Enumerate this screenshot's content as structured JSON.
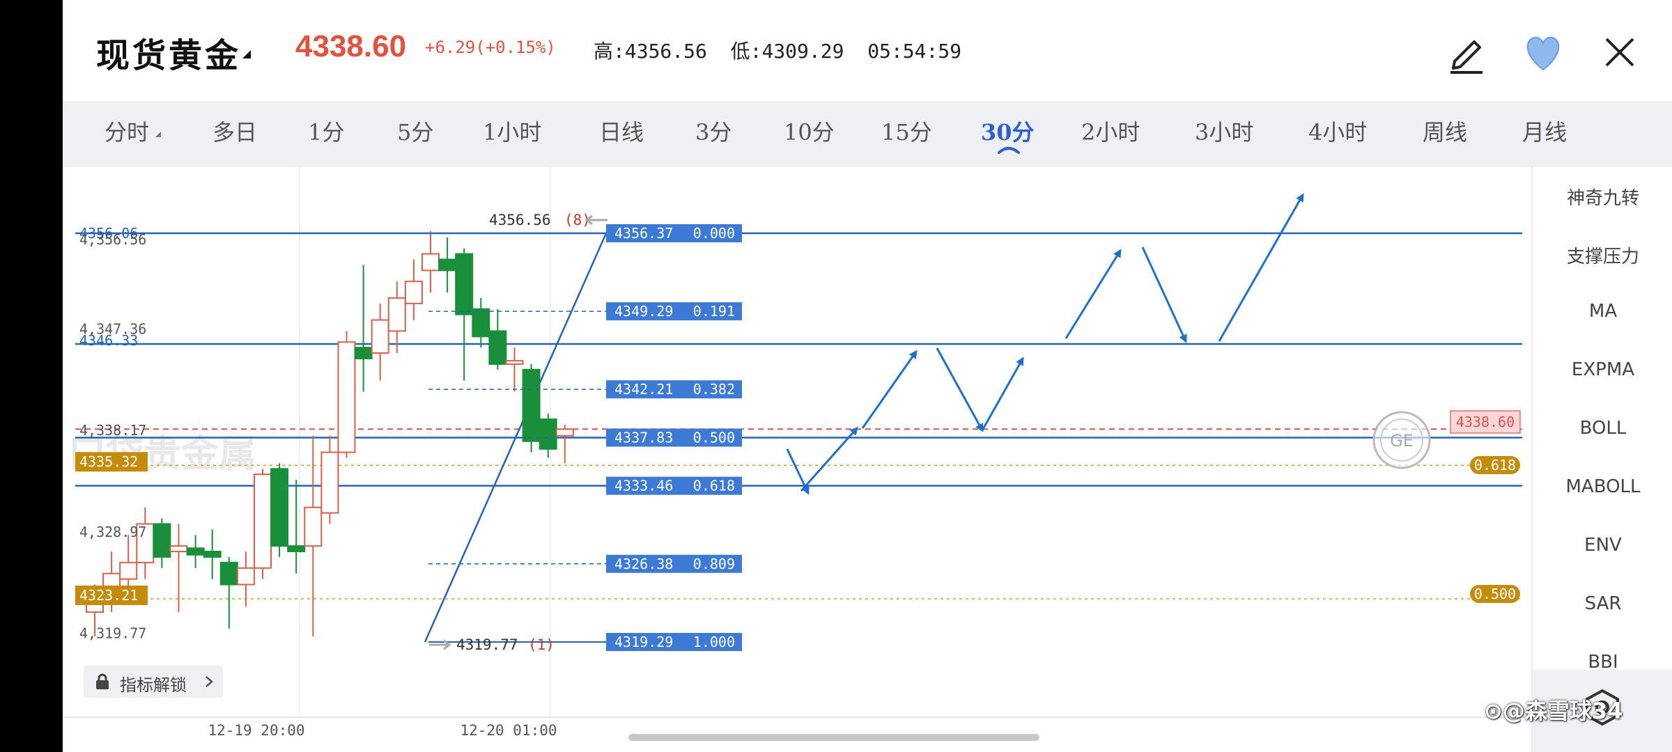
{
  "header": {
    "title": "现货黄金",
    "price": "4338.60",
    "change": "+6.29(+0.15%)",
    "high_label": "高:",
    "high_value": "4356.56",
    "low_label": "低:",
    "low_value": "4309.29",
    "time": "05:54:59"
  },
  "tabs": [
    {
      "label": "分时"
    },
    {
      "label": "多日"
    },
    {
      "label": "1分"
    },
    {
      "label": "5分"
    },
    {
      "label": "1小时"
    },
    {
      "label": "日线"
    },
    {
      "label": "3分"
    },
    {
      "label": "10分"
    },
    {
      "label": "15分"
    },
    {
      "label": "30分"
    },
    {
      "label": "2小时"
    },
    {
      "label": "3小时"
    },
    {
      "label": "4小时"
    },
    {
      "label": "周线"
    },
    {
      "label": "月线"
    }
  ],
  "active_tab": "30分",
  "sidebar": {
    "items": [
      {
        "label": "神奇九转"
      },
      {
        "label": "支撑压力"
      },
      {
        "label": "MA"
      },
      {
        "label": "EXPMA"
      },
      {
        "label": "BOLL"
      },
      {
        "label": "MABOLL"
      },
      {
        "label": "ENV"
      },
      {
        "label": "SAR"
      },
      {
        "label": "BBI"
      }
    ]
  },
  "chart": {
    "y_labels": [
      "4356.06",
      "4,356.56",
      "4,347.36",
      "4346.33",
      "4,338.17",
      "4335.32",
      "4,328.97",
      "4323.21",
      "4,319.77"
    ],
    "x_labels": [
      "12-19 20:00",
      "12-20 01:00"
    ],
    "high_marker": "4356.56",
    "high_marker_count": "(8)",
    "low_marker": "4319.77",
    "low_marker_count": "(1)",
    "fib_levels": [
      {
        "price": "4356.37",
        "ratio": "0.000"
      },
      {
        "price": "4349.29",
        "ratio": "0.191"
      },
      {
        "price": "4342.21",
        "ratio": "0.382"
      },
      {
        "price": "4337.83",
        "ratio": "0.500"
      },
      {
        "price": "4333.46",
        "ratio": "0.618"
      },
      {
        "price": "4326.38",
        "ratio": "0.809"
      },
      {
        "price": "4319.29",
        "ratio": "1.000"
      }
    ],
    "current_price_tag": "4338.60",
    "right_badge_618": "0.618",
    "right_badge_500": "0.500",
    "watermark": "口袋贵金属",
    "round_logo": "GE"
  },
  "chart_data": {
    "type": "candlestick",
    "interval": "30分",
    "x_labels": [
      "12-19 20:00",
      "12-20 01:00"
    ],
    "candles": [
      {
        "o": 4322.0,
        "h": 4324.5,
        "l": 4319.8,
        "c": 4323.5
      },
      {
        "o": 4324.0,
        "h": 4327.5,
        "l": 4322.0,
        "c": 4325.5
      },
      {
        "o": 4325.0,
        "h": 4329.0,
        "l": 4323.0,
        "c": 4326.5
      },
      {
        "o": 4326.5,
        "h": 4331.5,
        "l": 4325.0,
        "c": 4330.0
      },
      {
        "o": 4330.0,
        "h": 4330.5,
        "l": 4326.0,
        "c": 4327.0
      },
      {
        "o": 4327.5,
        "h": 4330.0,
        "l": 4322.0,
        "c": 4328.0
      },
      {
        "o": 4327.8,
        "h": 4329.0,
        "l": 4326.0,
        "c": 4327.2
      },
      {
        "o": 4327.5,
        "h": 4329.5,
        "l": 4325.0,
        "c": 4327.0
      },
      {
        "o": 4326.5,
        "h": 4327.0,
        "l": 4320.5,
        "c": 4324.5
      },
      {
        "o": 4324.5,
        "h": 4327.5,
        "l": 4322.5,
        "c": 4326.0
      },
      {
        "o": 4326.0,
        "h": 4335.0,
        "l": 4325.0,
        "c": 4334.5
      },
      {
        "o": 4335.0,
        "h": 4335.5,
        "l": 4327.0,
        "c": 4328.0
      },
      {
        "o": 4328.0,
        "h": 4334.0,
        "l": 4325.5,
        "c": 4327.5
      },
      {
        "o": 4328.0,
        "h": 4338.0,
        "l": 4319.8,
        "c": 4331.5
      },
      {
        "o": 4331.0,
        "h": 4338.0,
        "l": 4330.0,
        "c": 4336.5
      },
      {
        "o": 4336.5,
        "h": 4347.5,
        "l": 4336.0,
        "c": 4346.5
      },
      {
        "o": 4346.0,
        "h": 4353.5,
        "l": 4342.0,
        "c": 4345.0
      },
      {
        "o": 4345.5,
        "h": 4350.0,
        "l": 4343.0,
        "c": 4348.5
      },
      {
        "o": 4347.5,
        "h": 4352.0,
        "l": 4345.5,
        "c": 4350.5
      },
      {
        "o": 4350.0,
        "h": 4354.0,
        "l": 4348.5,
        "c": 4352.0
      },
      {
        "o": 4353.0,
        "h": 4356.56,
        "l": 4351.0,
        "c": 4354.5
      },
      {
        "o": 4354.0,
        "h": 4356.0,
        "l": 4351.0,
        "c": 4353.0
      },
      {
        "o": 4354.5,
        "h": 4355.0,
        "l": 4343.0,
        "c": 4349.0
      },
      {
        "o": 4349.5,
        "h": 4350.5,
        "l": 4346.0,
        "c": 4347.0
      },
      {
        "o": 4347.5,
        "h": 4349.5,
        "l": 4344.0,
        "c": 4344.5
      },
      {
        "o": 4344.5,
        "h": 4346.0,
        "l": 4342.0,
        "c": 4344.8
      },
      {
        "o": 4344.0,
        "h": 4344.5,
        "l": 4336.5,
        "c": 4337.5
      },
      {
        "o": 4339.5,
        "h": 4340.0,
        "l": 4336.0,
        "c": 4336.8
      },
      {
        "o": 4338.0,
        "h": 4339.0,
        "l": 4335.5,
        "c": 4338.6
      }
    ]
  }
}
